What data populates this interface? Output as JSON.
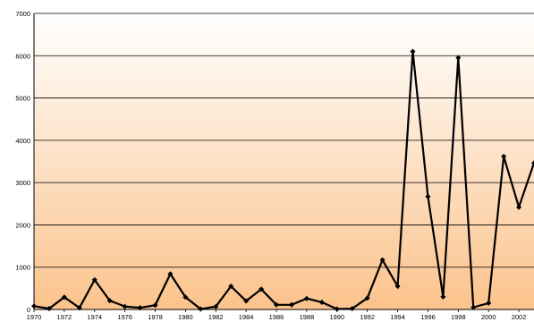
{
  "chart_data": {
    "type": "line",
    "title": "",
    "xlabel": "",
    "ylabel": "",
    "xlim": [
      1970,
      2003
    ],
    "ylim": [
      0,
      7000
    ],
    "y_ticks": [
      0,
      1000,
      2000,
      3000,
      4000,
      5000,
      6000,
      7000
    ],
    "x_ticks": [
      1970,
      1972,
      1974,
      1976,
      1978,
      1980,
      1982,
      1984,
      1986,
      1988,
      1990,
      1992,
      1994,
      1996,
      1998,
      2000,
      2002
    ],
    "grid": true,
    "legend": "none",
    "colors": {
      "line": "#000000",
      "grid": "#000000",
      "bg_top": "#ffffff",
      "bg_bottom": "#fbc38c"
    },
    "series": [
      {
        "x": [
          1970,
          1971,
          1972,
          1973,
          1974,
          1975,
          1976,
          1977,
          1978,
          1979,
          1980,
          1981,
          1982,
          1983,
          1984,
          1985,
          1986,
          1987,
          1988,
          1989,
          1990,
          1991,
          1992,
          1993,
          1994,
          1995,
          1996,
          1997,
          1998,
          1999,
          2000,
          2001,
          2002,
          2003
        ],
        "values": [
          80,
          20,
          290,
          40,
          700,
          210,
          70,
          40,
          100,
          840,
          290,
          10,
          70,
          550,
          200,
          480,
          110,
          110,
          260,
          170,
          10,
          20,
          270,
          1170,
          550,
          6100,
          2670,
          300,
          5950,
          50,
          150,
          3620,
          2420,
          3460
        ]
      }
    ]
  }
}
